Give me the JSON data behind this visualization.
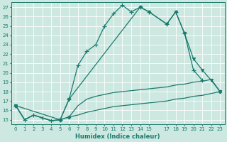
{
  "background_color": "#cce8e0",
  "grid_color": "#ffffff",
  "line_color": "#1a7a6e",
  "xlabel": "Humidex (Indice chaleur)",
  "ylim": [
    14.5,
    27.5
  ],
  "xlim": [
    -0.5,
    23.5
  ],
  "yticks": [
    15,
    16,
    17,
    18,
    19,
    20,
    21,
    22,
    23,
    24,
    25,
    26,
    27
  ],
  "xticks": [
    0,
    1,
    2,
    3,
    4,
    5,
    6,
    7,
    8,
    9,
    10,
    11,
    12,
    13,
    14,
    15,
    17,
    18,
    19,
    20,
    21,
    22,
    23
  ],
  "xtick_labels": [
    "0",
    "1",
    "2",
    "3",
    "4",
    "5",
    "6",
    "7",
    "8",
    "9",
    "10",
    "11",
    "12",
    "13",
    "14",
    "15",
    "17",
    "18",
    "19",
    "20",
    "21",
    "22",
    "23"
  ],
  "series": [
    {
      "x": [
        0,
        1,
        2,
        3,
        4,
        5,
        6,
        7,
        8,
        9,
        10,
        11,
        12,
        13,
        14,
        15,
        17,
        18,
        19,
        20,
        21,
        22,
        23
      ],
      "y": [
        16.5,
        15.0,
        15.5,
        15.2,
        14.9,
        15.0,
        15.3,
        15.5,
        15.8,
        16.0,
        16.2,
        16.4,
        16.5,
        16.6,
        16.7,
        16.8,
        17.0,
        17.2,
        17.3,
        17.5,
        17.6,
        17.8,
        18.0
      ],
      "marker": null,
      "linewidth": 0.9
    },
    {
      "x": [
        0,
        1,
        2,
        3,
        4,
        5,
        6,
        7,
        8,
        9,
        10,
        11,
        12,
        13,
        14,
        15,
        17,
        18,
        19,
        20,
        21,
        22,
        23
      ],
      "y": [
        16.5,
        15.0,
        15.5,
        15.2,
        14.9,
        15.0,
        15.3,
        16.5,
        17.2,
        17.5,
        17.7,
        17.9,
        18.0,
        18.1,
        18.2,
        18.3,
        18.5,
        18.7,
        18.8,
        19.0,
        19.1,
        19.3,
        18.0
      ],
      "marker": "D",
      "markersize": 2.5,
      "linewidth": 0.9
    },
    {
      "x": [
        0,
        1,
        2,
        3,
        4,
        5,
        6,
        7,
        8,
        9,
        10,
        11,
        12,
        13,
        14,
        15,
        17,
        18,
        19,
        20,
        21
      ],
      "y": [
        16.5,
        15.0,
        15.5,
        15.2,
        14.9,
        15.0,
        17.2,
        20.8,
        22.3,
        23.0,
        25.0,
        26.3,
        27.2,
        26.5,
        27.0,
        26.5,
        25.2,
        26.5,
        24.2,
        20.3,
        19.2
      ],
      "marker": "+",
      "markersize": 4,
      "linewidth": 0.9
    },
    {
      "x": [
        0,
        5,
        6,
        14,
        15,
        17,
        18,
        19,
        20,
        21,
        22,
        23
      ],
      "y": [
        16.5,
        15.0,
        17.2,
        27.0,
        26.5,
        25.2,
        26.5,
        24.2,
        21.5,
        20.3,
        19.2,
        18.0
      ],
      "marker": "v",
      "markersize": 3,
      "linewidth": 0.9
    }
  ]
}
